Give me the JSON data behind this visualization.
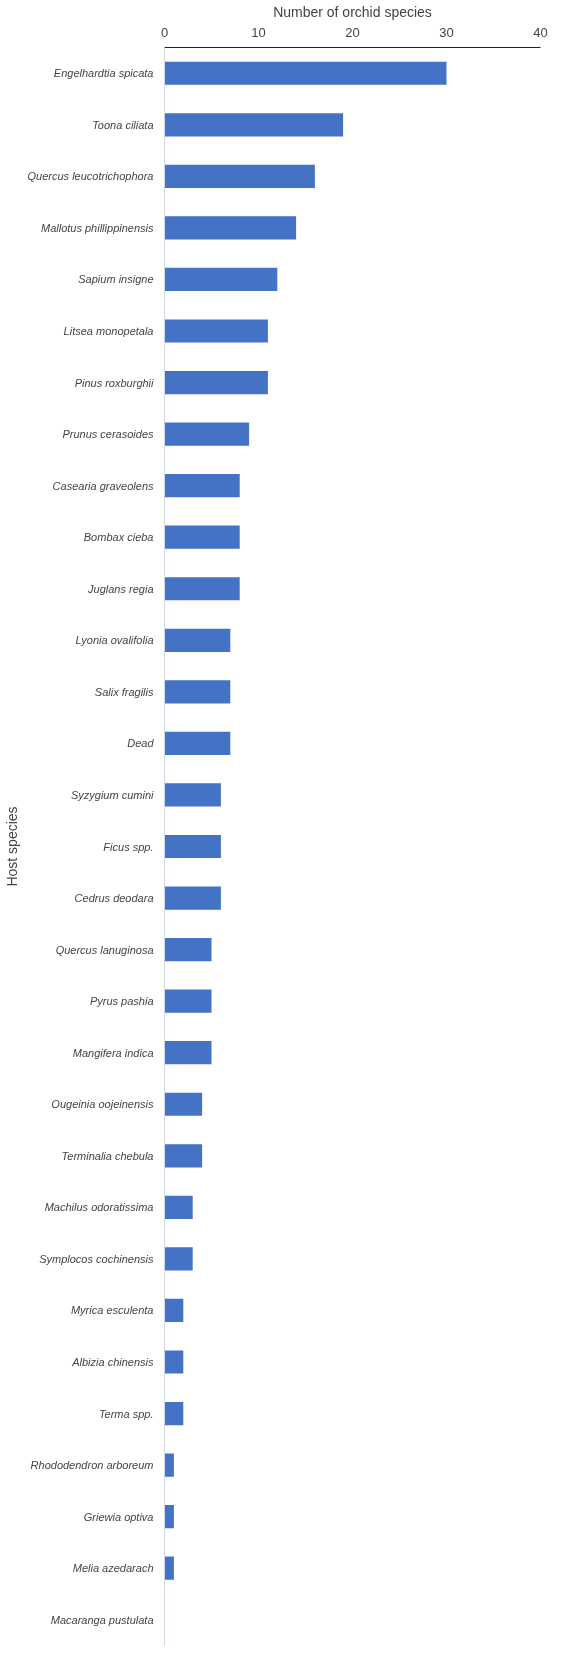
{
  "chart_data": {
    "type": "bar",
    "orientation": "horizontal",
    "xlabel": "Number of orchid species",
    "ylabel": "Host species",
    "categories": [
      "Engelhardtia spicata",
      "Toona ciliata",
      "Quercus leucotrichophora",
      "Mallotus phillippinensis",
      "Sapium insigne",
      "Litsea monopetala",
      "Pinus roxburghii",
      "Prunus cerasoides",
      "Casearia graveolens",
      "Bombax cieba",
      "Juglans regia",
      "Lyonia ovalifolia",
      "Salix fragilis",
      "Dead",
      "Syzygium cumini",
      "Ficus spp.",
      "Cedrus deodara",
      "Quercus lanuginosa",
      "Pyrus pashia",
      "Mangifera indica",
      "Ougeinia oojeinensis",
      "Terminalia chebula",
      "Machilus odoratissima",
      "Symplocos cochinensis",
      "Myrica esculenta",
      "Albizia chinensis",
      "Terma spp.",
      "Rhododendron arboreum",
      "Griewia optiva",
      "Melia azedarach",
      "Macaranga pustulata"
    ],
    "values": [
      30,
      19,
      16,
      14,
      12,
      11,
      11,
      9,
      8,
      8,
      8,
      7,
      7,
      7,
      6,
      6,
      6,
      5,
      5,
      5,
      4,
      4,
      3,
      3,
      2,
      2,
      2,
      1,
      1,
      1,
      0
    ],
    "color": "#4472c4",
    "xlim": [
      0,
      40
    ],
    "xticks": [
      0,
      10,
      20,
      30,
      40
    ],
    "grid": false
  }
}
